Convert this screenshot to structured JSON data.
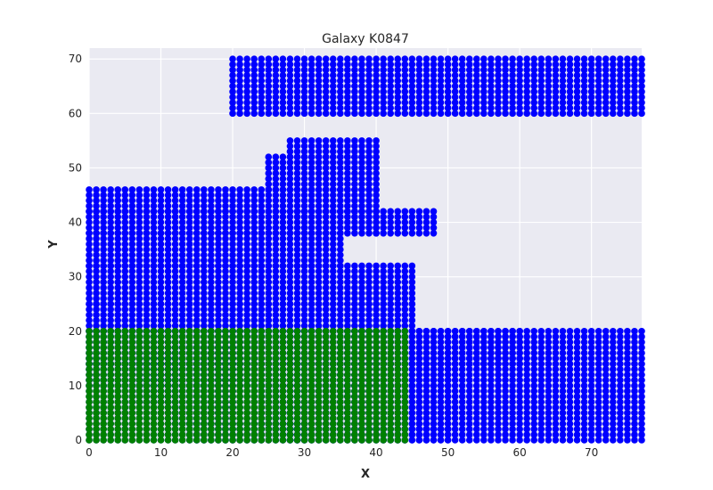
{
  "chart_data": {
    "type": "scatter",
    "title": "Galaxy K0847",
    "xlabel": "X",
    "ylabel": "Y",
    "xlim": [
      0,
      77
    ],
    "ylim": [
      0,
      72
    ],
    "xticks": [
      0,
      10,
      20,
      30,
      40,
      50,
      60,
      70
    ],
    "yticks": [
      0,
      10,
      20,
      30,
      40,
      50,
      60,
      70
    ],
    "grid": true,
    "background": "#EAEAF2",
    "series": [
      {
        "color": "#0000FF",
        "regions": [
          {
            "x": [
              20,
              80
            ],
            "y": [
              60,
              70
            ]
          },
          {
            "x": [
              -10,
              80
            ],
            "y": [
              -10,
              20
            ]
          },
          {
            "x": [
              6,
              11
            ],
            "y": [
              7,
              16
            ]
          },
          {
            "x": [
              12,
              20
            ],
            "y": [
              3,
              17
            ]
          },
          {
            "x": [
              14,
              30
            ],
            "y": [
              -10,
              3
            ]
          },
          {
            "x": [
              28,
              50
            ],
            "y": [
              -10,
              2
            ]
          },
          {
            "x": [
              24,
              50
            ],
            "y": [
              2,
              10
            ]
          },
          {
            "x": [
              -10,
              50
            ],
            "y": [
              10,
              14
            ]
          },
          {
            "x": [
              -10,
              60
            ],
            "y": [
              14,
              20
            ]
          },
          {
            "x": [
              -10,
              25
            ],
            "y": [
              20,
              25
            ]
          },
          {
            "x": [
              25,
              45
            ],
            "y": [
              20,
              25
            ]
          },
          {
            "x": [
              -10,
              45
            ],
            "y": [
              25,
              32
            ]
          },
          {
            "x": [
              -10,
              35
            ],
            "y": [
              32,
              38
            ]
          },
          {
            "x": [
              -10,
              30
            ],
            "y": [
              38,
              42
            ]
          },
          {
            "x": [
              30,
              40
            ],
            "y": [
              38,
              42
            ]
          },
          {
            "x": [
              40,
              48
            ],
            "y": [
              38,
              42
            ]
          },
          {
            "x": [
              -10,
              40
            ],
            "y": [
              42,
              46
            ]
          },
          {
            "x": [
              25,
              40
            ],
            "y": [
              46,
              52
            ]
          },
          {
            "x": [
              28,
              40
            ],
            "y": [
              52,
              55
            ]
          }
        ]
      },
      {
        "color": "#008000",
        "regions": [
          {
            "x": [
              -10,
              44
            ],
            "y": [
              -10,
              20
            ]
          }
        ]
      },
      {
        "color": "#DAA520",
        "regions": []
      },
      {
        "color": "#FF0000",
        "regions": []
      }
    ]
  }
}
